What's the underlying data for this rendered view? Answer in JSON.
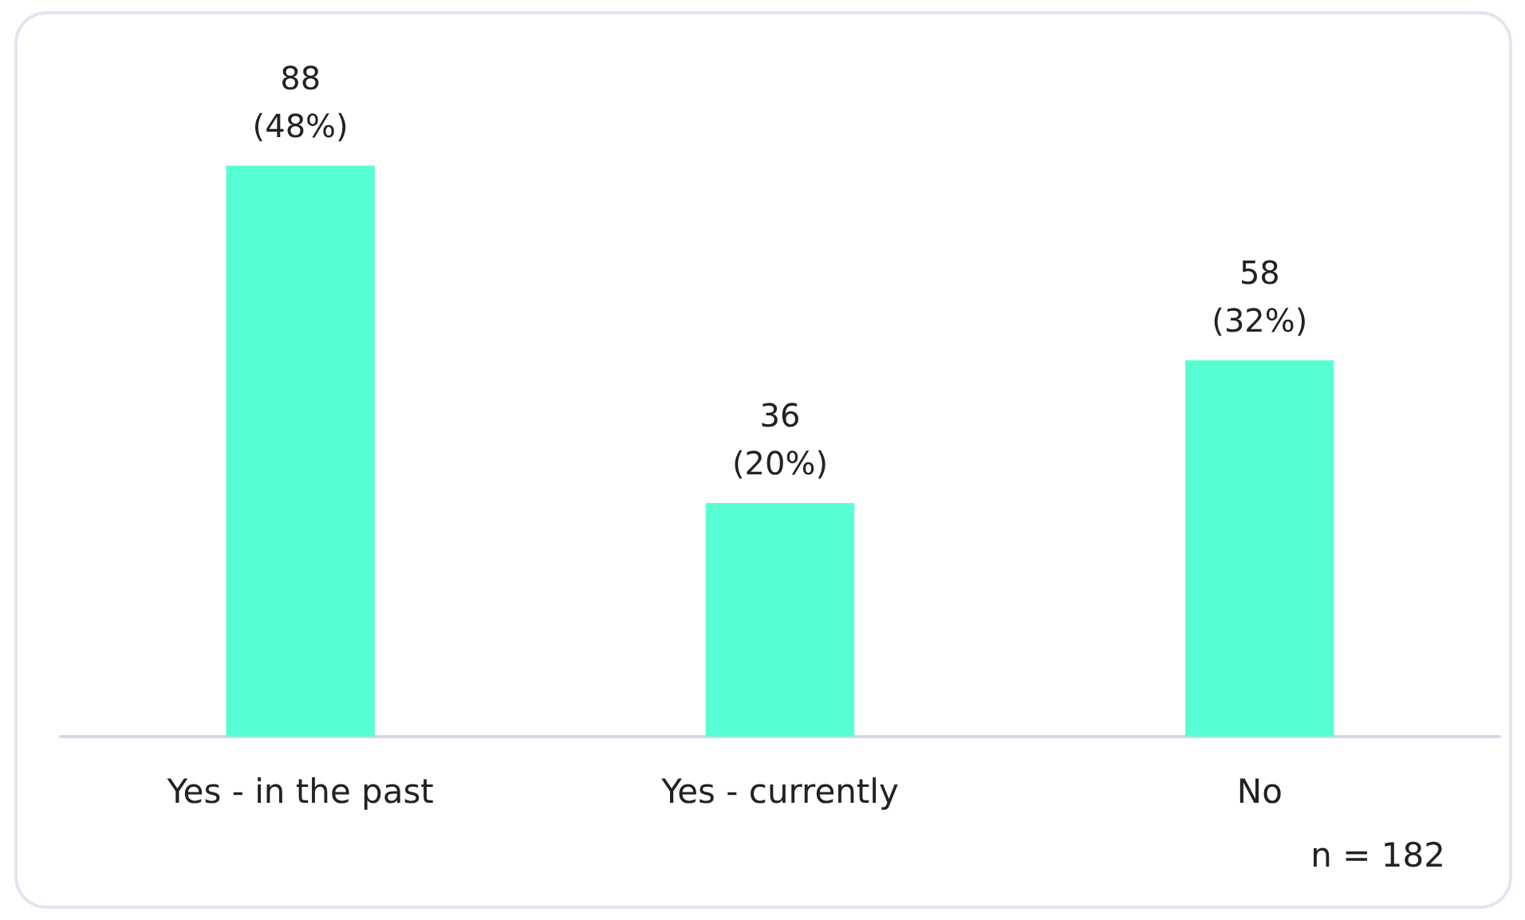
{
  "chart_data": {
    "type": "bar",
    "categories": [
      "Yes - in the past",
      "Yes - currently",
      "No"
    ],
    "values": [
      88,
      36,
      58
    ],
    "color": "#59ffd4",
    "value_labels": [
      "88\n(48%)",
      "36\n(20%)",
      "58\n(32%)"
    ],
    "annotations": [
      "n = 182"
    ]
  }
}
